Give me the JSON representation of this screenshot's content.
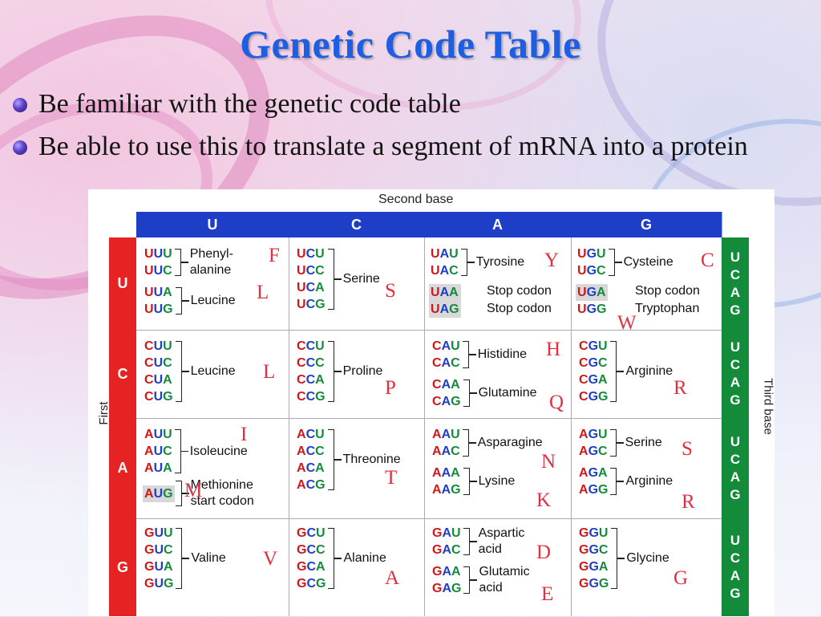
{
  "slide": {
    "title": "Genetic Code Table",
    "bullets": [
      "Be familiar with the genetic code table",
      "Be able to use this to translate a segment of mRNA into a protein"
    ]
  },
  "table": {
    "second_base_label": "Second base",
    "first_base_label": "First base",
    "third_base_label": "Third base",
    "bases": [
      "U",
      "C",
      "A",
      "G"
    ],
    "third": [
      "U",
      "C",
      "A",
      "G"
    ],
    "cells": {
      "UU": {
        "codons": [
          "UUU",
          "UUC",
          "UUA",
          "UUG"
        ],
        "aa1": "Phenyl-\nalanine",
        "aa2": "Leucine",
        "l1": "F",
        "l2": "L"
      },
      "UC": {
        "codons": [
          "UCU",
          "UCC",
          "UCA",
          "UCG"
        ],
        "aa": "Serine",
        "l": "S"
      },
      "UA": {
        "codons": [
          "UAU",
          "UAC",
          "UAA",
          "UAG"
        ],
        "aa1": "Tyrosine",
        "l1": "Y",
        "stop1": "Stop codon",
        "stop2": "Stop codon"
      },
      "UG": {
        "codons": [
          "UGU",
          "UGC",
          "UGA",
          "UGG"
        ],
        "aa1": "Cysteine",
        "l1": "C",
        "stop1": "Stop codon",
        "trp": "Tryptophan",
        "l2": "W"
      },
      "CU": {
        "codons": [
          "CUU",
          "CUC",
          "CUA",
          "CUG"
        ],
        "aa": "Leucine",
        "l": "L"
      },
      "CC": {
        "codons": [
          "CCU",
          "CCC",
          "CCA",
          "CCG"
        ],
        "aa": "Proline",
        "l": "P"
      },
      "CA": {
        "codons": [
          "CAU",
          "CAC",
          "CAA",
          "CAG"
        ],
        "aa1": "Histidine",
        "aa2": "Glutamine",
        "l1": "H",
        "l2": "Q"
      },
      "CG": {
        "codons": [
          "CGU",
          "CGC",
          "CGA",
          "CGG"
        ],
        "aa": "Arginine",
        "l": "R"
      },
      "AU": {
        "codons": [
          "AUU",
          "AUC",
          "AUA",
          "AUG"
        ],
        "aa1": "Isoleucine",
        "aa2": "Methionine\nstart codon",
        "l1": "I",
        "l2": "M"
      },
      "AC": {
        "codons": [
          "ACU",
          "ACC",
          "ACA",
          "ACG"
        ],
        "aa": "Threonine",
        "l": "T"
      },
      "AA": {
        "codons": [
          "AAU",
          "AAC",
          "AAA",
          "AAG"
        ],
        "aa1": "Asparagine",
        "aa2": "Lysine",
        "l1": "N",
        "l2": "K"
      },
      "AG": {
        "codons": [
          "AGU",
          "AGC",
          "AGA",
          "AGG"
        ],
        "aa1": "Serine",
        "aa2": "Arginine",
        "l1": "S",
        "l2": "R"
      },
      "GU": {
        "codons": [
          "GUU",
          "GUC",
          "GUA",
          "GUG"
        ],
        "aa": "Valine",
        "l": "V"
      },
      "GC": {
        "codons": [
          "GCU",
          "GCC",
          "GCA",
          "GCG"
        ],
        "aa": "Alanine",
        "l": "A"
      },
      "GA": {
        "codons": [
          "GAU",
          "GAC",
          "GAA",
          "GAG"
        ],
        "aa1": "Aspartic\nacid",
        "aa2": "Glutamic\nacid",
        "l1": "D",
        "l2": "E"
      },
      "GG": {
        "codons": [
          "GGU",
          "GGC",
          "GGA",
          "GGG"
        ],
        "aa": "Glycine",
        "l": "G"
      }
    },
    "colors": {
      "header_blue": "#1e3ec8",
      "first_base_red": "#e62222",
      "third_base_green": "#138b3a",
      "handwritten_red": "#e23040"
    }
  }
}
